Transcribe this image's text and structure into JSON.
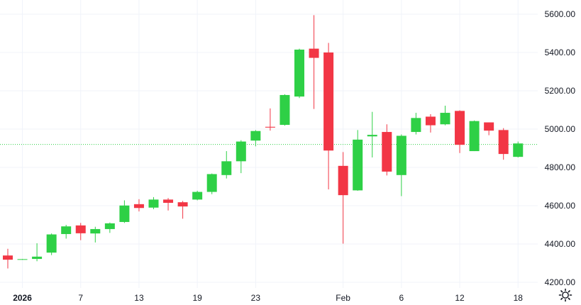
{
  "chart_data": {
    "type": "candlestick",
    "title": "",
    "xlabel": "",
    "ylabel": "",
    "ylim": [
      4180,
      5650
    ],
    "y_ticks": [
      "4200.00",
      "4400.00",
      "4600.00",
      "4800.00",
      "5000.00",
      "5200.00",
      "5400.00",
      "5600.00"
    ],
    "x_tick_labels": [
      {
        "label": "2026",
        "index": 1,
        "bold": true
      },
      {
        "label": "7",
        "index": 5
      },
      {
        "label": "13",
        "index": 9
      },
      {
        "label": "19",
        "index": 13
      },
      {
        "label": "23",
        "index": 17
      },
      {
        "label": "Feb",
        "index": 23
      },
      {
        "label": "6",
        "index": 27
      },
      {
        "label": "12",
        "index": 31
      },
      {
        "label": "18",
        "index": 35
      }
    ],
    "current_price_line": 4920,
    "grid": true,
    "colors": {
      "up": "#2ed046",
      "down": "#f23645",
      "grid": "#f0f3fa",
      "price_line": "#2ed046"
    },
    "candles": [
      {
        "date": "2025-12-31",
        "open": 4340,
        "high": 4375,
        "low": 4272,
        "close": 4318
      },
      {
        "date": "2026-01-01",
        "open": 4320,
        "high": 4322,
        "low": 4318,
        "close": 4321
      },
      {
        "date": "2026-01-02",
        "open": 4322,
        "high": 4404,
        "low": 4310,
        "close": 4334
      },
      {
        "date": "2026-01-05",
        "open": 4355,
        "high": 4455,
        "low": 4342,
        "close": 4450
      },
      {
        "date": "2026-01-06",
        "open": 4452,
        "high": 4500,
        "low": 4428,
        "close": 4492
      },
      {
        "date": "2026-01-07",
        "open": 4497,
        "high": 4510,
        "low": 4420,
        "close": 4456
      },
      {
        "date": "2026-01-08",
        "open": 4455,
        "high": 4490,
        "low": 4408,
        "close": 4478
      },
      {
        "date": "2026-01-09",
        "open": 4478,
        "high": 4512,
        "low": 4458,
        "close": 4508
      },
      {
        "date": "2026-01-12",
        "open": 4515,
        "high": 4628,
        "low": 4510,
        "close": 4601
      },
      {
        "date": "2026-01-13",
        "open": 4608,
        "high": 4634,
        "low": 4570,
        "close": 4588
      },
      {
        "date": "2026-01-14",
        "open": 4590,
        "high": 4645,
        "low": 4582,
        "close": 4632
      },
      {
        "date": "2026-01-15",
        "open": 4632,
        "high": 4640,
        "low": 4575,
        "close": 4615
      },
      {
        "date": "2026-01-16",
        "open": 4618,
        "high": 4625,
        "low": 4532,
        "close": 4596
      },
      {
        "date": "2026-01-19",
        "open": 4632,
        "high": 4678,
        "low": 4628,
        "close": 4672
      },
      {
        "date": "2026-01-20",
        "open": 4672,
        "high": 4768,
        "low": 4660,
        "close": 4765
      },
      {
        "date": "2026-01-21",
        "open": 4760,
        "high": 4885,
        "low": 4742,
        "close": 4832
      },
      {
        "date": "2026-01-22",
        "open": 4832,
        "high": 4942,
        "low": 4770,
        "close": 4935
      },
      {
        "date": "2026-01-23",
        "open": 4940,
        "high": 4995,
        "low": 4910,
        "close": 4990
      },
      {
        "date": "2026-01-26",
        "open": 5012,
        "high": 5108,
        "low": 4992,
        "close": 5008
      },
      {
        "date": "2026-01-27",
        "open": 5022,
        "high": 5182,
        "low": 5018,
        "close": 5178
      },
      {
        "date": "2026-01-28",
        "open": 5170,
        "high": 5420,
        "low": 5162,
        "close": 5415
      },
      {
        "date": "2026-01-29",
        "open": 5420,
        "high": 5595,
        "low": 5105,
        "close": 5372
      },
      {
        "date": "2026-01-30",
        "open": 5400,
        "high": 5450,
        "low": 4685,
        "close": 4888
      },
      {
        "date": "2026-02-02",
        "open": 4808,
        "high": 4880,
        "low": 4402,
        "close": 4655
      },
      {
        "date": "2026-02-03",
        "open": 4680,
        "high": 4995,
        "low": 4678,
        "close": 4945
      },
      {
        "date": "2026-02-04",
        "open": 4962,
        "high": 5090,
        "low": 4852,
        "close": 4970
      },
      {
        "date": "2026-02-05",
        "open": 4985,
        "high": 5025,
        "low": 4758,
        "close": 4778
      },
      {
        "date": "2026-02-06",
        "open": 4760,
        "high": 4972,
        "low": 4650,
        "close": 4965
      },
      {
        "date": "2026-02-09",
        "open": 4985,
        "high": 5085,
        "low": 4972,
        "close": 5058
      },
      {
        "date": "2026-02-10",
        "open": 5065,
        "high": 5078,
        "low": 4982,
        "close": 5020
      },
      {
        "date": "2026-02-11",
        "open": 5025,
        "high": 5122,
        "low": 5020,
        "close": 5085
      },
      {
        "date": "2026-02-12",
        "open": 5095,
        "high": 5098,
        "low": 4875,
        "close": 4918
      },
      {
        "date": "2026-02-13",
        "open": 4885,
        "high": 5045,
        "low": 4885,
        "close": 5042
      },
      {
        "date": "2026-02-16",
        "open": 5035,
        "high": 5035,
        "low": 4968,
        "close": 4992
      },
      {
        "date": "2026-02-17",
        "open": 4995,
        "high": 5005,
        "low": 4840,
        "close": 4870
      },
      {
        "date": "2026-02-18",
        "open": 4855,
        "high": 4935,
        "low": 4852,
        "close": 4925
      }
    ]
  },
  "icons": {
    "settings": "gear-icon"
  }
}
